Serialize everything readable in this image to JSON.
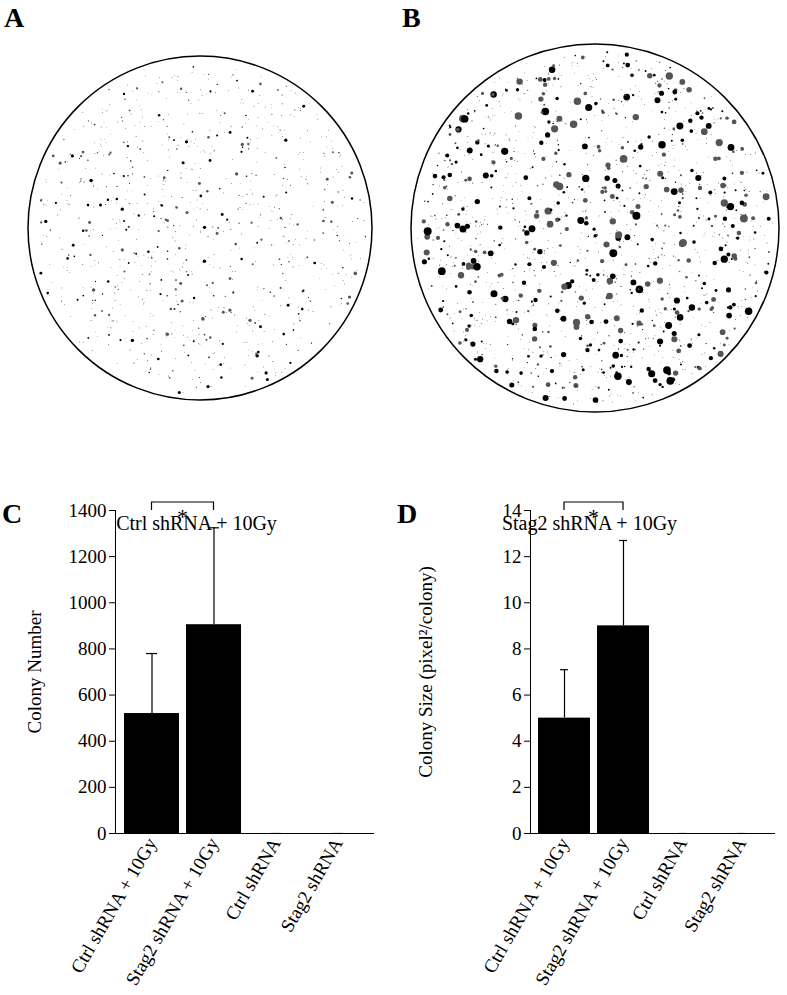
{
  "images": [
    {
      "panel_label": "A",
      "caption": "Ctrl shRNA + 10Gy"
    },
    {
      "panel_label": "B",
      "caption": "Stag2 shRNA + 10Gy"
    }
  ],
  "chart_data": [
    {
      "type": "bar",
      "panel_label": "C",
      "categories": [
        "Ctrl shRNA + 10Gy",
        "Stag2 shRNA + 10Gy",
        "Ctrl shRNA",
        "Stag2 shRNA"
      ],
      "values": [
        520,
        905,
        0,
        0
      ],
      "errors": [
        260,
        420,
        0,
        0
      ],
      "color": "#000000",
      "ylabel": "Colony Number",
      "ylim": [
        0,
        1400
      ],
      "yticks": [
        0,
        200,
        400,
        600,
        800,
        1000,
        1200,
        1400
      ],
      "annotations": [
        {
          "text": "*",
          "between": [
            "Ctrl shRNA + 10Gy",
            "Stag2 shRNA + 10Gy"
          ]
        }
      ]
    },
    {
      "type": "bar",
      "panel_label": "D",
      "categories": [
        "Ctrl shRNA + 10Gy",
        "Stag2 shRNA + 10Gy",
        "Ctrl shRNA",
        "Stag2 shRNA"
      ],
      "values": [
        5,
        9,
        0,
        0
      ],
      "errors": [
        2.1,
        3.7,
        0,
        0
      ],
      "color": "#000000",
      "ylabel": "Colony Size (pixel²/colony)",
      "ylim": [
        0,
        14
      ],
      "yticks": [
        0,
        2,
        4,
        6,
        8,
        10,
        12,
        14
      ],
      "annotations": [
        {
          "text": "*",
          "between": [
            "Ctrl shRNA + 10Gy",
            "Stag2 shRNA + 10Gy"
          ]
        }
      ]
    }
  ]
}
